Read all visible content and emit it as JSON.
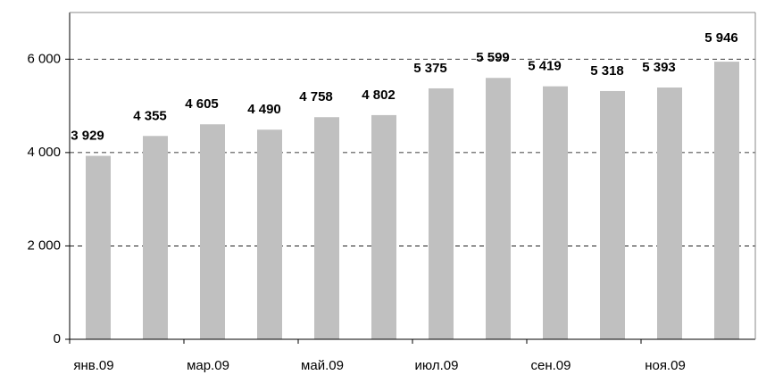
{
  "chart_data": {
    "type": "bar",
    "categories": [
      "янв.09",
      null,
      "мар.09",
      null,
      "май.09",
      null,
      "июл.09",
      null,
      "сен.09",
      null,
      "ноя.09",
      null
    ],
    "values": [
      3929,
      4355,
      4605,
      4490,
      4758,
      4802,
      5375,
      5599,
      5419,
      5318,
      5393,
      5946
    ],
    "value_labels": [
      "3 929",
      "4 355",
      "4 605",
      "4 490",
      "4 758",
      "4 802",
      "5 375",
      "5 599",
      "5 419",
      "5 318",
      "5 393",
      "5 946"
    ],
    "color": "#c0c0c0",
    "ylim": [
      0,
      7000
    ],
    "yticks": [
      0,
      {
        "value": 2000,
        "label": "2 000"
      },
      {
        "value": 4000,
        "label": "4 000"
      },
      {
        "value": 6000,
        "label": "6 000"
      }
    ],
    "grid": true
  }
}
